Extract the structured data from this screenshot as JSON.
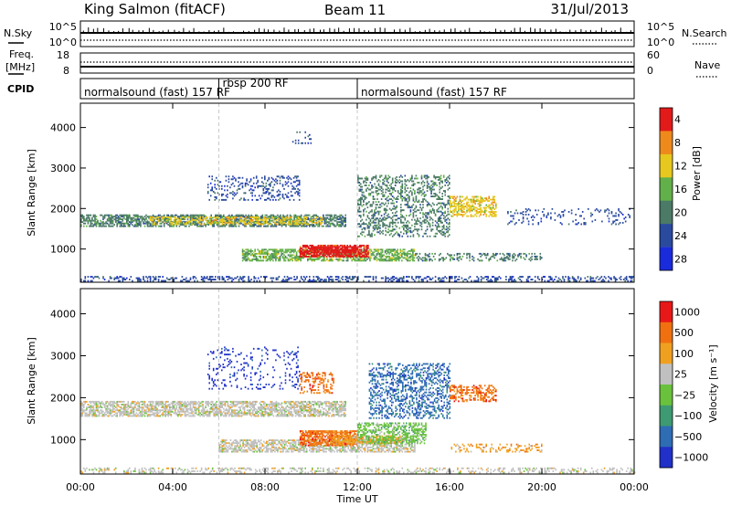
{
  "header": {
    "station": "King Salmon (fitACF)",
    "beam": "Beam 11",
    "date": "31/Jul/2013"
  },
  "top_panel": {
    "left_label": "N.Sky",
    "left_ticks": [
      "10^5",
      "10^0"
    ],
    "right_label": "N.Search",
    "right_ticks": [
      "10^5",
      "10^0"
    ]
  },
  "freq_panel": {
    "left_label_1": "Freq.",
    "left_label_2": "[MHz]",
    "left_ticks": [
      "18",
      "8"
    ],
    "right_label": "Nave",
    "right_ticks": [
      "60",
      "0"
    ]
  },
  "cpid_panel": {
    "label": "CPID",
    "segments": [
      {
        "name": "normalsound (fast) 157 RF",
        "start": 0,
        "end": 6
      },
      {
        "name": "rbsp 200 RF",
        "start": 6,
        "end": 12
      },
      {
        "name": "normalsound (fast) 157 RF",
        "start": 12,
        "end": 24
      }
    ]
  },
  "x_axis": {
    "label": "Time UT",
    "ticks": [
      "00:00",
      "04:00",
      "08:00",
      "12:00",
      "16:00",
      "20:00",
      "00:00"
    ]
  },
  "chart_data": [
    {
      "type": "heatmap",
      "title": "",
      "xlabel": "Time UT",
      "ylabel": "Slant Range [km]",
      "x_unit": "hours UT",
      "xlim": [
        0,
        24
      ],
      "ylim": [
        180,
        4600
      ],
      "y_ticks": [
        "1000",
        "2000",
        "3000",
        "4000"
      ],
      "colorbar": {
        "label": "Power [dB]",
        "ticks": [
          "4",
          "8",
          "12",
          "16",
          "20",
          "24",
          "28"
        ],
        "colors": [
          "#1a2bdc",
          "#2a4a9e",
          "#4b7a66",
          "#62b04a",
          "#e6c81e",
          "#ee8a1c",
          "#e21a1a"
        ]
      },
      "regions": [
        {
          "t0": 0.0,
          "t1": 24.0,
          "r0": 200,
          "r1": 330,
          "level": 1,
          "density": 0.35
        },
        {
          "t0": 0.0,
          "t1": 11.5,
          "r0": 1550,
          "r1": 1850,
          "level": 2,
          "density": 0.6
        },
        {
          "t0": 3.0,
          "t1": 10.5,
          "r0": 1600,
          "r1": 1800,
          "level": 4,
          "density": 0.45
        },
        {
          "t0": 7.0,
          "t1": 14.5,
          "r0": 700,
          "r1": 1000,
          "level": 3,
          "density": 0.6
        },
        {
          "t0": 9.5,
          "t1": 12.5,
          "r0": 800,
          "r1": 1100,
          "level": 6,
          "density": 0.75
        },
        {
          "t0": 10.0,
          "t1": 12.0,
          "r0": 900,
          "r1": 1050,
          "level": 7,
          "density": 0.7
        },
        {
          "t0": 12.0,
          "t1": 16.0,
          "r0": 1300,
          "r1": 2800,
          "level": 2,
          "density": 0.3
        },
        {
          "t0": 16.0,
          "t1": 18.0,
          "r0": 1800,
          "r1": 2300,
          "level": 4,
          "density": 0.5
        },
        {
          "t0": 5.5,
          "t1": 9.5,
          "r0": 2200,
          "r1": 2800,
          "level": 1,
          "density": 0.2
        },
        {
          "t0": 14.5,
          "t1": 20.0,
          "r0": 700,
          "r1": 900,
          "level": 2,
          "density": 0.3
        },
        {
          "t0": 18.5,
          "t1": 23.8,
          "r0": 1600,
          "r1": 2000,
          "level": 1,
          "density": 0.15
        },
        {
          "t0": 9.0,
          "t1": 10.0,
          "r0": 3600,
          "r1": 3900,
          "level": 1,
          "density": 0.15
        }
      ]
    },
    {
      "type": "heatmap",
      "title": "",
      "xlabel": "Time UT",
      "ylabel": "Slant Range [km]",
      "x_unit": "hours UT",
      "xlim": [
        0,
        24
      ],
      "ylim": [
        180,
        4600
      ],
      "y_ticks": [
        "1000",
        "2000",
        "3000",
        "4000"
      ],
      "colorbar": {
        "label": "Velocity [m s⁻¹]",
        "ticks": [
          "1000",
          "500",
          "100",
          "25",
          "−25",
          "−100",
          "−500",
          "−1000"
        ],
        "colors": [
          "#2030c8",
          "#2e6cb4",
          "#3e9a72",
          "#6ac23c",
          "#c0c0c0",
          "#f0a020",
          "#f07010",
          "#e81818"
        ]
      },
      "regions": [
        {
          "t0": 0.0,
          "t1": 24.0,
          "r0": 200,
          "r1": 330,
          "level": 4,
          "density": 0.3
        },
        {
          "t0": 0.0,
          "t1": 11.5,
          "r0": 1550,
          "r1": 1900,
          "level": 4,
          "density": 0.65
        },
        {
          "t0": 6.0,
          "t1": 14.5,
          "r0": 700,
          "r1": 1000,
          "level": 4,
          "density": 0.6
        },
        {
          "t0": 9.5,
          "t1": 12.0,
          "r0": 850,
          "r1": 1200,
          "level": 6,
          "density": 0.7
        },
        {
          "t0": 11.0,
          "t1": 14.0,
          "r0": 900,
          "r1": 1100,
          "level": 5,
          "density": 0.6
        },
        {
          "t0": 12.0,
          "t1": 15.0,
          "r0": 900,
          "r1": 1400,
          "level": 3,
          "density": 0.5
        },
        {
          "t0": 12.5,
          "t1": 16.0,
          "r0": 1500,
          "r1": 2800,
          "level": 1,
          "density": 0.35
        },
        {
          "t0": 16.0,
          "t1": 18.0,
          "r0": 1900,
          "r1": 2300,
          "level": 6,
          "density": 0.45
        },
        {
          "t0": 9.5,
          "t1": 11.0,
          "r0": 2100,
          "r1": 2600,
          "level": 6,
          "density": 0.35
        },
        {
          "t0": 16.0,
          "t1": 20.0,
          "r0": 700,
          "r1": 900,
          "level": 5,
          "density": 0.25
        },
        {
          "t0": 5.5,
          "t1": 9.5,
          "r0": 2200,
          "r1": 3200,
          "level": 0,
          "density": 0.12
        }
      ]
    }
  ]
}
